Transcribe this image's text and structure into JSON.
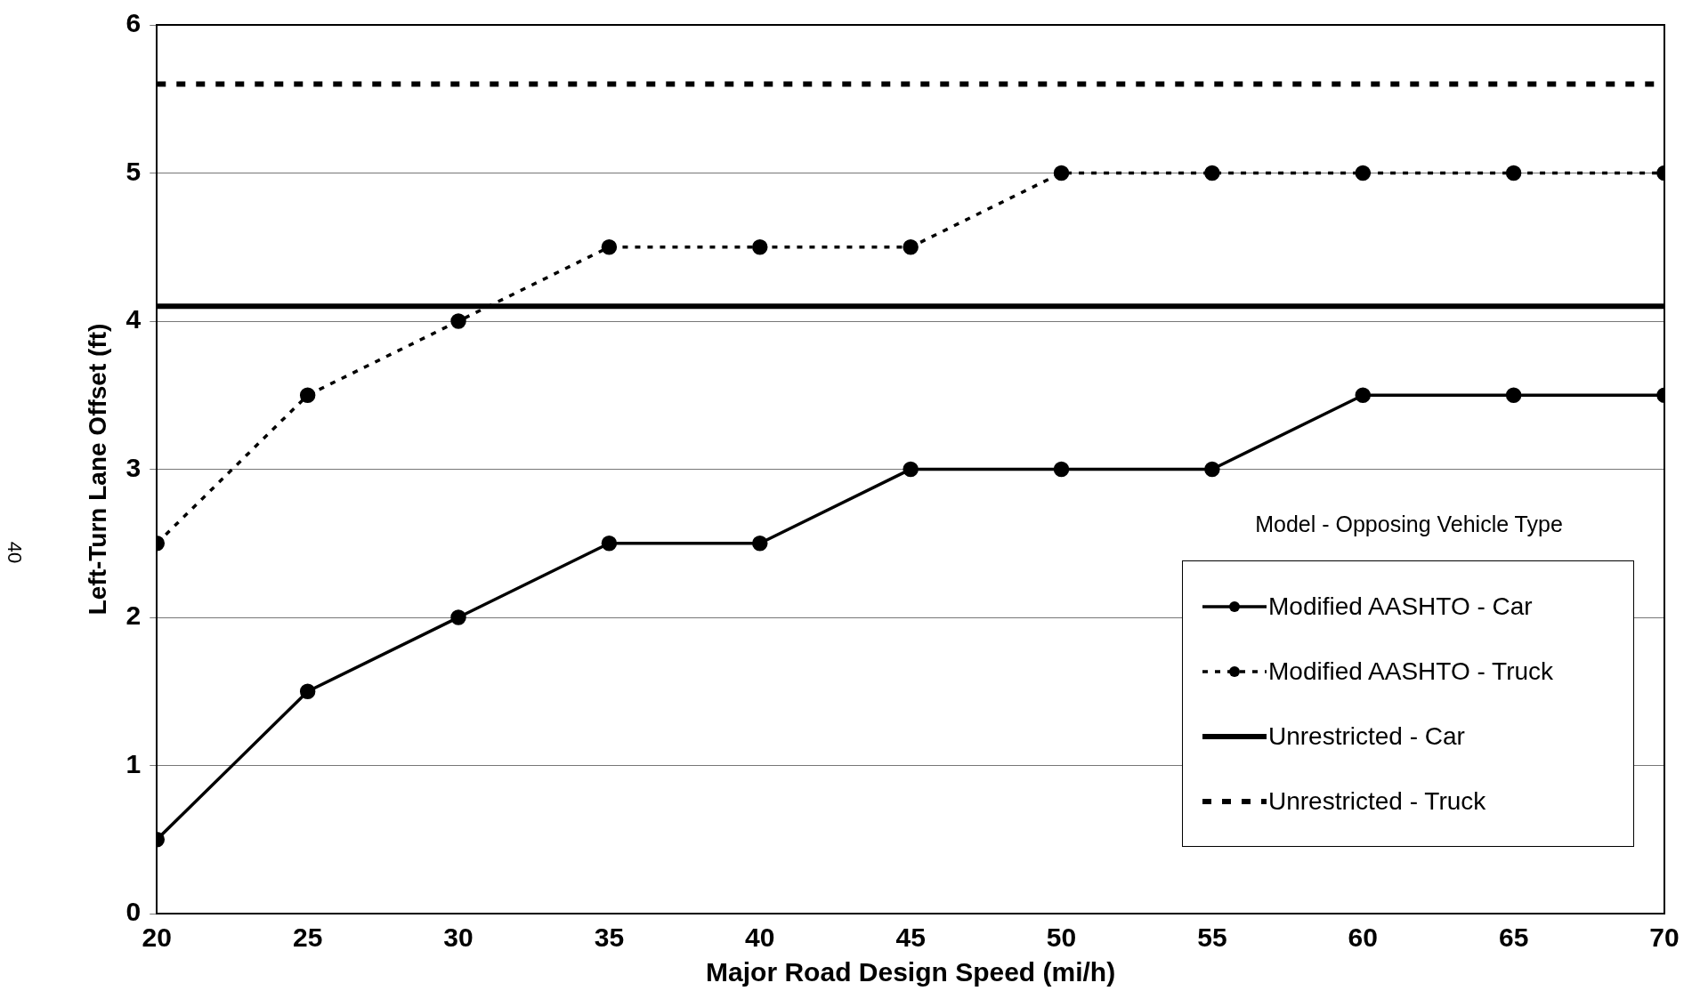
{
  "chart_data": {
    "type": "line",
    "xlabel": "Major Road Design Speed (mi/h)",
    "ylabel": "Left-Turn Lane Offset (ft)",
    "legend_title": "Model - Opposing Vehicle Type",
    "xlim": [
      20,
      70
    ],
    "xticks": [
      20,
      25,
      30,
      35,
      40,
      45,
      50,
      55,
      60,
      65,
      70
    ],
    "ylim": [
      0,
      6
    ],
    "yticks": [
      0,
      1,
      2,
      3,
      4,
      5,
      6
    ],
    "grid": "y",
    "legend": "bottom right",
    "annotations": [
      "40"
    ],
    "series": [
      {
        "name": "Modified AASHTO - Car",
        "color": "#000000",
        "x": [
          20,
          25,
          30,
          35,
          40,
          45,
          50,
          55,
          60,
          65,
          70
        ],
        "values": [
          0.5,
          1.5,
          2,
          2.5,
          2.5,
          3,
          3,
          3,
          3.5,
          3.5,
          3.5
        ],
        "marker": "circle",
        "line_style": "solid"
      },
      {
        "name": "Modified AASHTO - Truck",
        "color": "#000000",
        "x": [
          20,
          25,
          30,
          35,
          40,
          45,
          50,
          55,
          60,
          65,
          70
        ],
        "values": [
          2.5,
          3.5,
          4,
          4.5,
          4.5,
          4.5,
          5,
          5,
          5,
          5,
          5
        ],
        "marker": "circle",
        "line_style": "dashed"
      },
      {
        "name": "Unrestricted - Car",
        "color": "#000000",
        "x": [
          20,
          70
        ],
        "values": [
          4.1,
          4.1
        ],
        "marker": "none",
        "line_style": "solid"
      },
      {
        "name": "Unrestricted - Truck",
        "color": "#000000",
        "x": [
          20,
          70
        ],
        "values": [
          5.6,
          5.6
        ],
        "marker": "none",
        "line_style": "dotted"
      }
    ]
  }
}
